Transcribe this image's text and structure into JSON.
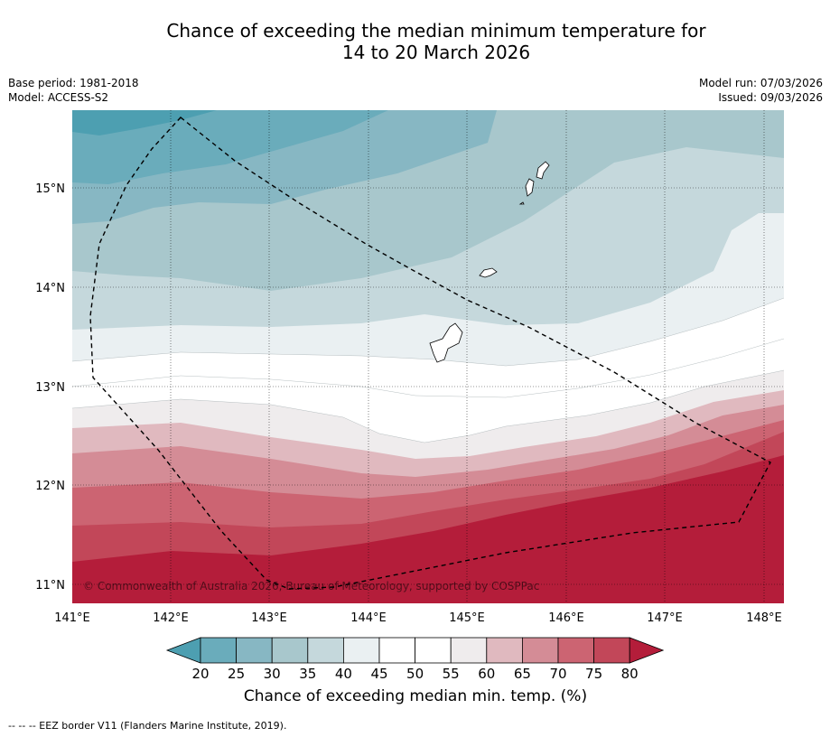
{
  "title_line1": "Chance of exceeding the median minimum temperature for",
  "title_line2": "14 to 20 March 2026",
  "base_period": "Base period: 1981-2018",
  "model": "Model: ACCESS-S2",
  "model_run": "Model run: 07/03/2026",
  "issued": "Issued: 09/03/2026",
  "copyright": "© Commonwealth of Australia 2026, Bureau of Meteorology, supported by COSPPac",
  "colorbar_title": "Chance of exceeding median min. temp. (%)",
  "footer": "--  --  -- EEZ border V11 (Flanders Marine Institute, 2019).",
  "lon_labels": [
    "141°E",
    "142°E",
    "143°E",
    "144°E",
    "145°E",
    "146°E",
    "147°E",
    "148°E"
  ],
  "lat_labels": [
    "15°N",
    "14°N",
    "13°N",
    "12°N",
    "11°N"
  ],
  "colorbar_ticks": [
    "20",
    "25",
    "30",
    "35",
    "40",
    "45",
    "50",
    "55",
    "60",
    "65",
    "70",
    "75",
    "80"
  ],
  "colorbar_colors": [
    "#4d9fb1",
    "#6aacbb",
    "#87b7c3",
    "#a8c7cc",
    "#c5d8dc",
    "#eaf0f2",
    "#ffffff",
    "#ffffff",
    "#efeced",
    "#e0b9bf",
    "#d48c96",
    "#cc6472",
    "#c24759",
    "#b41d3a"
  ],
  "colors": {
    "c20": "#4d9fb1",
    "c25": "#6aacbb",
    "c30": "#87b7c3",
    "c35": "#a8c7cc",
    "c40": "#c5d8dc",
    "c45": "#eaf0f2",
    "c50": "#ffffff",
    "c55": "#efeced",
    "c60": "#e0b9bf",
    "c65": "#d48c96",
    "c70": "#cc6472",
    "c75": "#c24759",
    "c80": "#b41d3a"
  }
}
